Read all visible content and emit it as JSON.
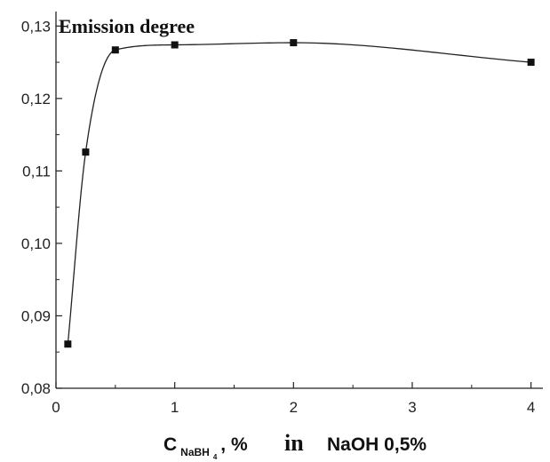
{
  "chart_data": {
    "type": "scatter",
    "title": "",
    "ylabel": "Emission degree",
    "xlabel": {
      "c_symbol": "C",
      "c_subscript": "NaBH",
      "c_subscript_index": "4",
      "after_subscript": ", %",
      "in_word": "in",
      "medium": "NaOH 0,5%"
    },
    "xlim": [
      0,
      4.1
    ],
    "ylim": [
      0.08,
      0.132
    ],
    "x_ticks": [
      0,
      1,
      2,
      3,
      4
    ],
    "x_tick_labels": [
      "0",
      "1",
      "2",
      "3",
      "4"
    ],
    "y_ticks": [
      0.08,
      0.09,
      0.1,
      0.11,
      0.12,
      0.13
    ],
    "y_tick_labels": [
      "0,08",
      "0,09",
      "0,10",
      "0,11",
      "0,12",
      "0,13"
    ],
    "grid": false,
    "series": [
      {
        "marker": "square",
        "color": "#111111",
        "fit_curve": true,
        "x": [
          0.1,
          0.25,
          0.5,
          1,
          2,
          4
        ],
        "y": [
          0.0861,
          0.1126,
          0.1267,
          0.1274,
          0.1277,
          0.125
        ]
      }
    ]
  }
}
